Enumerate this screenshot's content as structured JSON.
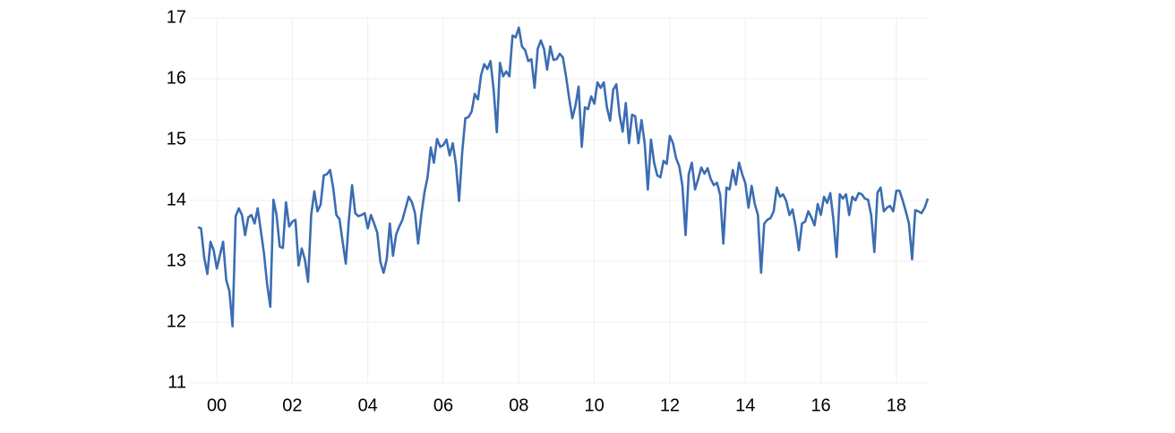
{
  "chart_data": {
    "type": "line",
    "color": "#3b6db3",
    "grid": true,
    "xlim": [
      2000,
      2019.333
    ],
    "ylim": [
      11,
      17
    ],
    "yticks": [
      11,
      12,
      13,
      14,
      15,
      16,
      17
    ],
    "xticks": [
      {
        "value": 2000.5,
        "label": "00"
      },
      {
        "value": 2002.5,
        "label": "02"
      },
      {
        "value": 2004.5,
        "label": "04"
      },
      {
        "value": 2006.5,
        "label": "06"
      },
      {
        "value": 2008.5,
        "label": "08"
      },
      {
        "value": 2010.5,
        "label": "10"
      },
      {
        "value": 2012.5,
        "label": "12"
      },
      {
        "value": 2014.5,
        "label": "14"
      },
      {
        "value": 2016.5,
        "label": "16"
      },
      {
        "value": 2018.5,
        "label": "18"
      }
    ],
    "x": [
      2000,
      2000.083,
      2000.167,
      2000.25,
      2000.333,
      2000.417,
      2000.5,
      2000.583,
      2000.667,
      2000.75,
      2000.833,
      2000.917,
      2001,
      2001.083,
      2001.167,
      2001.25,
      2001.333,
      2001.417,
      2001.5,
      2001.583,
      2001.667,
      2001.75,
      2001.833,
      2001.917,
      2002,
      2002.083,
      2002.167,
      2002.25,
      2002.333,
      2002.417,
      2002.5,
      2002.583,
      2002.667,
      2002.75,
      2002.833,
      2002.917,
      2003,
      2003.083,
      2003.167,
      2003.25,
      2003.333,
      2003.417,
      2003.5,
      2003.583,
      2003.667,
      2003.75,
      2003.833,
      2003.917,
      2004,
      2004.083,
      2004.167,
      2004.25,
      2004.333,
      2004.417,
      2004.5,
      2004.583,
      2004.667,
      2004.75,
      2004.833,
      2004.917,
      2005,
      2005.083,
      2005.167,
      2005.25,
      2005.333,
      2005.417,
      2005.5,
      2005.583,
      2005.667,
      2005.75,
      2005.833,
      2005.917,
      2006,
      2006.083,
      2006.167,
      2006.25,
      2006.333,
      2006.417,
      2006.5,
      2006.583,
      2006.667,
      2006.75,
      2006.833,
      2006.917,
      2007,
      2007.083,
      2007.167,
      2007.25,
      2007.333,
      2007.417,
      2007.5,
      2007.583,
      2007.667,
      2007.75,
      2007.833,
      2007.917,
      2008,
      2008.083,
      2008.167,
      2008.25,
      2008.333,
      2008.417,
      2008.5,
      2008.583,
      2008.667,
      2008.75,
      2008.833,
      2008.917,
      2009,
      2009.083,
      2009.167,
      2009.25,
      2009.333,
      2009.417,
      2009.5,
      2009.583,
      2009.667,
      2009.75,
      2009.833,
      2009.917,
      2010,
      2010.083,
      2010.167,
      2010.25,
      2010.333,
      2010.417,
      2010.5,
      2010.583,
      2010.667,
      2010.75,
      2010.833,
      2010.917,
      2011,
      2011.083,
      2011.167,
      2011.25,
      2011.333,
      2011.417,
      2011.5,
      2011.583,
      2011.667,
      2011.75,
      2011.833,
      2011.917,
      2012,
      2012.083,
      2012.167,
      2012.25,
      2012.333,
      2012.417,
      2012.5,
      2012.583,
      2012.667,
      2012.75,
      2012.833,
      2012.917,
      2013,
      2013.083,
      2013.167,
      2013.25,
      2013.333,
      2013.417,
      2013.5,
      2013.583,
      2013.667,
      2013.75,
      2013.833,
      2013.917,
      2014,
      2014.083,
      2014.167,
      2014.25,
      2014.333,
      2014.417,
      2014.5,
      2014.583,
      2014.667,
      2014.75,
      2014.833,
      2014.917,
      2015,
      2015.083,
      2015.167,
      2015.25,
      2015.333,
      2015.417,
      2015.5,
      2015.583,
      2015.667,
      2015.75,
      2015.833,
      2015.917,
      2016,
      2016.083,
      2016.167,
      2016.25,
      2016.333,
      2016.417,
      2016.5,
      2016.583,
      2016.667,
      2016.75,
      2016.833,
      2016.917,
      2017,
      2017.083,
      2017.167,
      2017.25,
      2017.333,
      2017.417,
      2017.5,
      2017.583,
      2017.667,
      2017.75,
      2017.833,
      2017.917,
      2018,
      2018.083,
      2018.167,
      2018.25,
      2018.333,
      2018.417,
      2018.5,
      2018.583,
      2018.667,
      2018.75,
      2018.833,
      2018.917,
      2019,
      2019.083,
      2019.167,
      2019.25,
      2019.333
    ],
    "values": [
      13.56,
      13.54,
      13.06,
      12.79,
      13.32,
      13.18,
      12.88,
      13.1,
      13.32,
      12.69,
      12.51,
      11.93,
      13.74,
      13.87,
      13.76,
      13.43,
      13.72,
      13.76,
      13.62,
      13.87,
      13.5,
      13.13,
      12.62,
      12.25,
      14.01,
      13.76,
      13.24,
      13.22,
      13.97,
      13.57,
      13.65,
      13.68,
      12.93,
      13.21,
      13.03,
      12.66,
      13.76,
      14.15,
      13.82,
      13.93,
      14.41,
      14.43,
      14.5,
      14.21,
      13.76,
      13.69,
      13.32,
      12.96,
      13.69,
      14.25,
      13.79,
      13.74,
      13.76,
      13.79,
      13.54,
      13.76,
      13.62,
      13.47,
      12.99,
      12.81,
      13.03,
      13.62,
      13.09,
      13.44,
      13.57,
      13.68,
      13.87,
      14.06,
      13.97,
      13.79,
      13.29,
      13.76,
      14.13,
      14.38,
      14.87,
      14.62,
      15.01,
      14.88,
      14.91,
      15.0,
      14.74,
      14.94,
      14.6,
      13.99,
      14.79,
      15.35,
      15.37,
      15.46,
      15.75,
      15.66,
      16.06,
      16.24,
      16.16,
      16.29,
      15.82,
      15.12,
      16.26,
      16.04,
      16.12,
      16.04,
      16.71,
      16.68,
      16.84,
      16.53,
      16.47,
      16.29,
      16.32,
      15.85,
      16.49,
      16.63,
      16.49,
      16.15,
      16.53,
      16.31,
      16.32,
      16.41,
      16.35,
      16.04,
      15.68,
      15.35,
      15.56,
      15.87,
      14.88,
      15.53,
      15.5,
      15.71,
      15.59,
      15.94,
      15.85,
      15.94,
      15.53,
      15.31,
      15.82,
      15.91,
      15.41,
      15.13,
      15.6,
      14.94,
      15.41,
      15.38,
      14.94,
      15.32,
      14.94,
      14.18,
      15.0,
      14.62,
      14.41,
      14.38,
      14.65,
      14.6,
      15.06,
      14.94,
      14.69,
      14.56,
      14.24,
      13.43,
      14.43,
      14.62,
      14.18,
      14.35,
      14.54,
      14.44,
      14.53,
      14.35,
      14.25,
      14.29,
      14.09,
      13.29,
      14.21,
      14.18,
      14.5,
      14.26,
      14.62,
      14.43,
      14.28,
      13.88,
      14.24,
      13.94,
      13.76,
      12.81,
      13.62,
      13.68,
      13.71,
      13.82,
      14.21,
      14.06,
      14.1,
      13.99,
      13.76,
      13.85,
      13.57,
      13.18,
      13.62,
      13.65,
      13.82,
      13.72,
      13.59,
      13.94,
      13.76,
      14.06,
      13.96,
      14.12,
      13.68,
      13.07,
      14.1,
      14.03,
      14.1,
      13.76,
      14.06,
      14.0,
      14.12,
      14.1,
      14.03,
      14.01,
      13.76,
      13.15,
      14.13,
      14.21,
      13.82,
      13.88,
      13.91,
      13.82,
      14.16,
      14.16,
      14.0,
      13.82,
      13.62,
      13.03,
      13.84,
      13.82,
      13.79,
      13.88,
      14.03
    ]
  }
}
